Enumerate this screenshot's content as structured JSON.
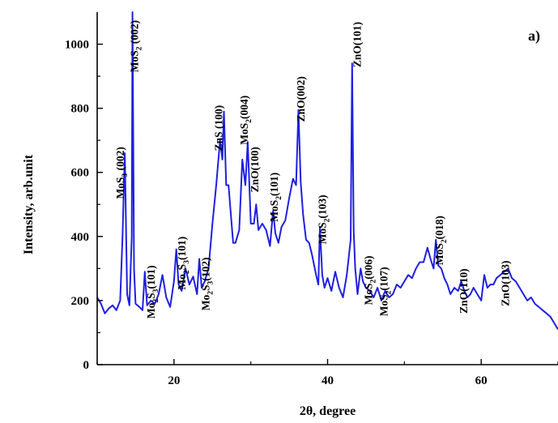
{
  "chart_data": {
    "type": "line",
    "panel_label": "a)",
    "xlabel": "2θ, degree",
    "ylabel": "Intensity, arb.unit",
    "xlim": [
      10,
      70
    ],
    "ylim": [
      0,
      1100
    ],
    "xticks": [
      20,
      40,
      60
    ],
    "xtick_labels": [
      "20",
      "40",
      "60"
    ],
    "yticks": [
      0,
      200,
      400,
      600,
      800,
      1000
    ],
    "ytick_labels": [
      "0",
      "200",
      "400",
      "600",
      "800",
      "1000"
    ],
    "grid": false,
    "legend": "none",
    "line_color": "#1f1fe0",
    "series": [
      {
        "x": [
          10.0,
          10.5,
          11.0,
          11.5,
          12.0,
          12.5,
          13.0,
          13.3,
          13.6,
          13.9,
          14.2,
          14.5,
          14.6,
          14.8,
          15.0,
          15.5,
          15.9,
          16.2,
          16.5,
          17.0,
          17.5,
          18.0,
          18.5,
          19.0,
          19.5,
          20.0,
          20.3,
          20.6,
          21.0,
          21.5,
          22.0,
          22.5,
          23.0,
          23.3,
          23.6,
          24.0,
          24.5,
          25.0,
          25.5,
          26.0,
          26.3,
          26.5,
          26.8,
          27.1,
          27.4,
          27.7,
          28.0,
          28.5,
          28.9,
          29.3,
          29.6,
          30.0,
          30.4,
          30.7,
          31.0,
          31.5,
          32.0,
          32.5,
          32.9,
          33.2,
          33.6,
          34.0,
          34.5,
          35.0,
          35.5,
          35.9,
          36.2,
          36.5,
          36.8,
          37.2,
          37.6,
          38.0,
          38.5,
          38.8,
          39.0,
          39.3,
          39.6,
          40.0,
          40.5,
          41.0,
          41.5,
          42.0,
          42.5,
          43.0,
          43.2,
          43.4,
          43.6,
          43.9,
          44.3,
          44.6,
          45.0,
          45.5,
          46.0,
          46.5,
          47.0,
          47.5,
          48.0,
          48.5,
          49.0,
          49.5,
          50.0,
          50.5,
          51.0,
          51.5,
          52.0,
          52.5,
          53.0,
          53.4,
          53.8,
          54.1,
          54.4,
          54.8,
          55.2,
          55.6,
          56.0,
          56.5,
          57.0,
          57.4,
          57.8,
          58.2,
          58.6,
          59.0,
          59.5,
          60.0,
          60.4,
          60.8,
          61.2,
          61.6,
          62.0,
          62.5,
          63.0,
          63.5,
          64.0,
          64.5,
          65.0,
          65.5,
          66.0,
          66.5,
          67.0,
          67.5,
          68.0,
          68.5,
          69.0,
          69.5,
          70.0
        ],
        "y": [
          210,
          190,
          160,
          175,
          185,
          170,
          200,
          400,
          660,
          220,
          185,
          400,
          1100,
          300,
          190,
          180,
          170,
          290,
          185,
          200,
          190,
          220,
          280,
          210,
          180,
          260,
          360,
          250,
          230,
          300,
          250,
          275,
          220,
          330,
          240,
          260,
          300,
          440,
          560,
          700,
          640,
          790,
          560,
          560,
          470,
          380,
          380,
          420,
          640,
          560,
          695,
          440,
          440,
          500,
          420,
          440,
          420,
          370,
          480,
          410,
          380,
          430,
          450,
          520,
          580,
          560,
          795,
          570,
          470,
          390,
          380,
          340,
          280,
          250,
          430,
          280,
          240,
          270,
          230,
          290,
          240,
          210,
          280,
          390,
          940,
          420,
          300,
          220,
          300,
          260,
          240,
          230,
          210,
          240,
          200,
          230,
          210,
          220,
          250,
          240,
          260,
          280,
          270,
          300,
          320,
          320,
          365,
          330,
          300,
          390,
          310,
          300,
          270,
          250,
          220,
          240,
          230,
          260,
          230,
          210,
          220,
          240,
          220,
          200,
          280,
          240,
          250,
          250,
          270,
          280,
          290,
          300,
          270,
          260,
          240,
          220,
          200,
          210,
          190,
          180,
          170,
          160,
          150,
          130,
          110
        ]
      }
    ],
    "annotations": [
      {
        "x": 13.5,
        "y_top": 680,
        "text_parts": [
          [
            "MoS",
            ""
          ],
          [
            "3",
            "sub"
          ],
          [
            " (002)",
            ""
          ]
        ]
      },
      {
        "x": 15.3,
        "y_top": 1075,
        "text_parts": [
          [
            "MoS",
            ""
          ],
          [
            "2",
            "sub"
          ],
          [
            " (002)",
            ""
          ]
        ]
      },
      {
        "x": 17.5,
        "y_top": 310,
        "text_parts": [
          [
            "Mo",
            ""
          ],
          [
            "2",
            "sub"
          ],
          [
            "S",
            ""
          ],
          [
            "3",
            "sub"
          ],
          [
            "(101)",
            ""
          ]
        ]
      },
      {
        "x": 21.5,
        "y_top": 400,
        "text_parts": [
          [
            "Mo",
            ""
          ],
          [
            "2",
            "sub"
          ],
          [
            "S",
            ""
          ],
          [
            "3",
            "sub"
          ],
          [
            "(101)",
            ""
          ]
        ]
      },
      {
        "x": 24.6,
        "y_top": 335,
        "text_parts": [
          [
            "Mo",
            ""
          ],
          [
            "2",
            "sub"
          ],
          [
            "S",
            ""
          ],
          [
            "3",
            "sub"
          ],
          [
            "(102)",
            ""
          ]
        ]
      },
      {
        "x": 26.3,
        "y_top": 810,
        "text_parts": [
          [
            "ZnS (100)",
            ""
          ]
        ]
      },
      {
        "x": 29.6,
        "y_top": 840,
        "text_parts": [
          [
            "MoS",
            ""
          ],
          [
            "2",
            "sub"
          ],
          [
            "(004)",
            ""
          ]
        ]
      },
      {
        "x": 31.0,
        "y_top": 680,
        "text_parts": [
          [
            "ZnO(100)",
            ""
          ]
        ]
      },
      {
        "x": 33.5,
        "y_top": 600,
        "text_parts": [
          [
            "MoS",
            ""
          ],
          [
            "2",
            "sub"
          ],
          [
            "(101)",
            ""
          ]
        ]
      },
      {
        "x": 37.0,
        "y_top": 900,
        "text_parts": [
          [
            "ZnO(002)",
            ""
          ]
        ]
      },
      {
        "x": 39.8,
        "y_top": 530,
        "text_parts": [
          [
            "MoS",
            ""
          ],
          [
            "2",
            "sub"
          ],
          [
            "(103)",
            ""
          ]
        ]
      },
      {
        "x": 44.3,
        "y_top": 1070,
        "text_parts": [
          [
            "ZnO(101)",
            ""
          ]
        ]
      },
      {
        "x": 45.8,
        "y_top": 340,
        "text_parts": [
          [
            "MoS",
            ""
          ],
          [
            "2",
            "sub"
          ],
          [
            "(006)",
            ""
          ]
        ]
      },
      {
        "x": 47.8,
        "y_top": 305,
        "text_parts": [
          [
            "MoS",
            ""
          ],
          [
            "2",
            "sub"
          ],
          [
            "(107)",
            ""
          ]
        ]
      },
      {
        "x": 55.0,
        "y_top": 465,
        "text_parts": [
          [
            "MoS",
            ""
          ],
          [
            "2",
            "sub"
          ],
          [
            "(018)",
            ""
          ]
        ]
      },
      {
        "x": 58.2,
        "y_top": 300,
        "text_parts": [
          [
            "ZnO(110)",
            ""
          ]
        ]
      },
      {
        "x": 63.6,
        "y_top": 325,
        "text_parts": [
          [
            "ZnO(103)",
            ""
          ]
        ]
      }
    ]
  }
}
